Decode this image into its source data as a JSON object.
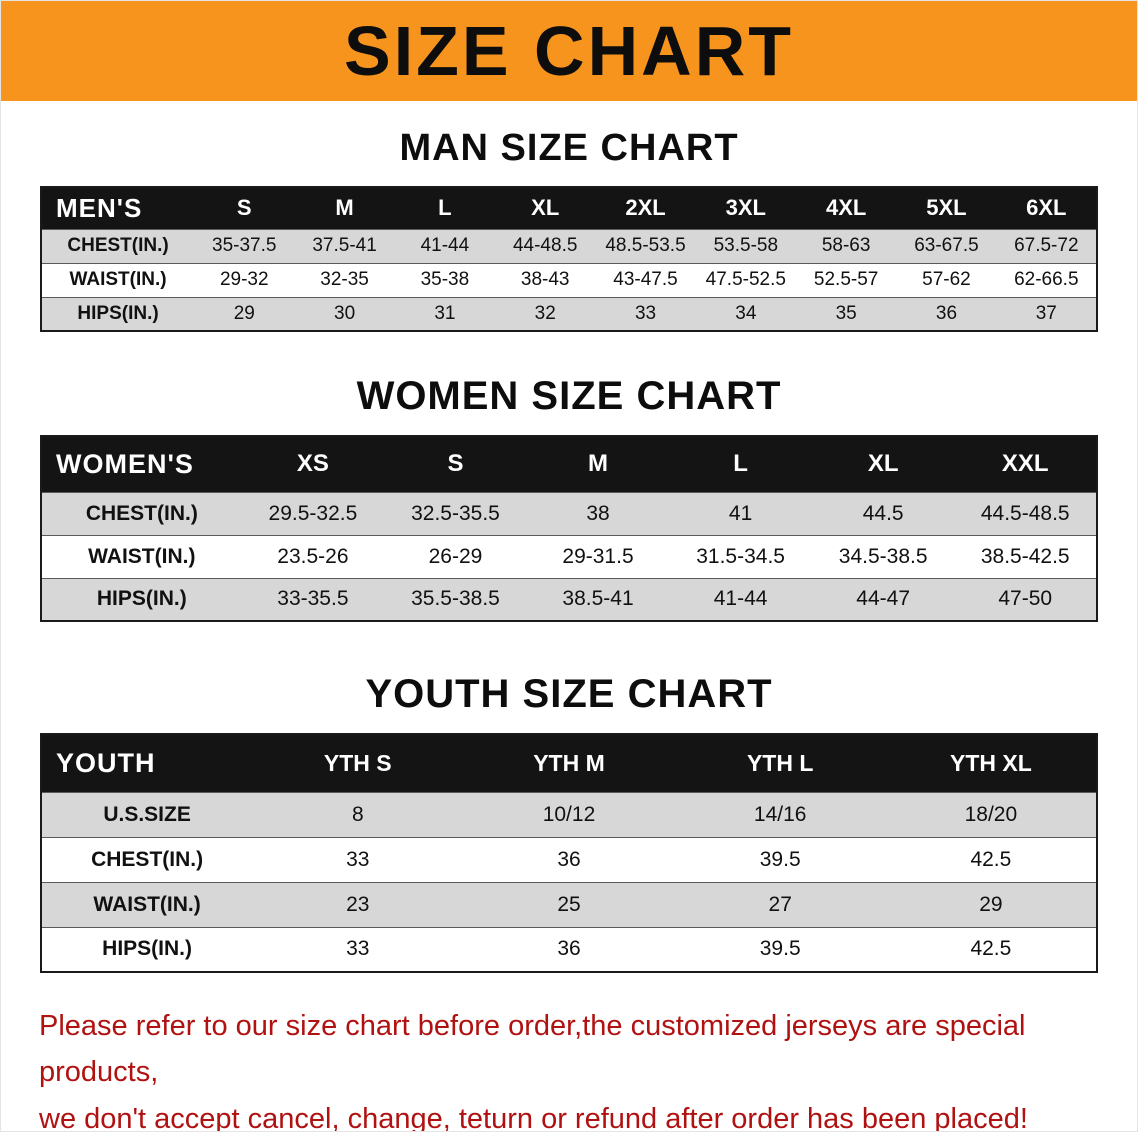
{
  "banner": {
    "title": "SIZE CHART"
  },
  "chart_data": [
    {
      "type": "table",
      "title": "MAN SIZE CHART",
      "columns": [
        "MEN'S",
        "S",
        "M",
        "L",
        "XL",
        "2XL",
        "3XL",
        "4XL",
        "5XL",
        "6XL"
      ],
      "rows": [
        [
          "CHEST(IN.)",
          "35-37.5",
          "37.5-41",
          "41-44",
          "44-48.5",
          "48.5-53.5",
          "53.5-58",
          "58-63",
          "63-67.5",
          "67.5-72"
        ],
        [
          "WAIST(IN.)",
          "29-32",
          "32-35",
          "35-38",
          "38-43",
          "43-47.5",
          "47.5-52.5",
          "52.5-57",
          "57-62",
          "62-66.5"
        ],
        [
          "HIPS(IN.)",
          "29",
          "30",
          "31",
          "32",
          "33",
          "34",
          "35",
          "36",
          "37"
        ]
      ]
    },
    {
      "type": "table",
      "title": "WOMEN SIZE CHART",
      "columns": [
        "WOMEN'S",
        "XS",
        "S",
        "M",
        "L",
        "XL",
        "XXL"
      ],
      "rows": [
        [
          "CHEST(IN.)",
          "29.5-32.5",
          "32.5-35.5",
          "38",
          "41",
          "44.5",
          "44.5-48.5"
        ],
        [
          "WAIST(IN.)",
          "23.5-26",
          "26-29",
          "29-31.5",
          "31.5-34.5",
          "34.5-38.5",
          "38.5-42.5"
        ],
        [
          "HIPS(IN.)",
          "33-35.5",
          "35.5-38.5",
          "38.5-41",
          "41-44",
          "44-47",
          "47-50"
        ]
      ]
    },
    {
      "type": "table",
      "title": "YOUTH SIZE CHART",
      "columns": [
        "YOUTH",
        "YTH S",
        "YTH M",
        "YTH L",
        "YTH XL"
      ],
      "rows": [
        [
          "U.S.SIZE",
          "8",
          "10/12",
          "14/16",
          "18/20"
        ],
        [
          "CHEST(IN.)",
          "33",
          "36",
          "39.5",
          "42.5"
        ],
        [
          "WAIST(IN.)",
          "23",
          "25",
          "27",
          "29"
        ],
        [
          "HIPS(IN.)",
          "33",
          "36",
          "39.5",
          "42.5"
        ]
      ]
    }
  ],
  "footer": {
    "line1": "Please refer to our size chart before order,the customized jerseys are special products,",
    "line2": "we don't accept cancel, change, teturn or refund after order has been placed!"
  },
  "colors": {
    "banner_orange": "#F7941E",
    "table_header_black": "#141414",
    "row_gray": "#d7d7d7",
    "footer_red": "#B01212"
  }
}
